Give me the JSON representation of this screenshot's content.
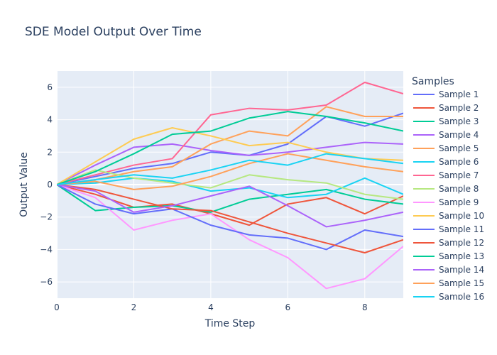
{
  "chart_data": {
    "type": "line",
    "title": "SDE Model Output Over Time",
    "xlabel": "Time Step",
    "ylabel": "Output Value",
    "xlim": [
      0,
      9
    ],
    "ylim": [
      -7,
      7
    ],
    "xticks": [
      0,
      2,
      4,
      6,
      8
    ],
    "yticks": [
      -6,
      -4,
      -2,
      0,
      2,
      4,
      6
    ],
    "legend_title": "Samples",
    "legend_position": "right",
    "grid": true,
    "x": [
      0,
      1,
      2,
      3,
      4,
      5,
      6,
      7,
      8,
      9
    ],
    "series": [
      {
        "name": "Sample 1",
        "color": "#636efa",
        "values": [
          0,
          0.5,
          1.0,
          1.3,
          2.0,
          1.8,
          2.5,
          4.2,
          3.6,
          4.4
        ]
      },
      {
        "name": "Sample 2",
        "color": "#ef553b",
        "values": [
          0,
          -0.6,
          -1.4,
          -1.2,
          -1.8,
          -2.5,
          -1.2,
          -0.8,
          -1.8,
          -0.7
        ]
      },
      {
        "name": "Sample 3",
        "color": "#00cc96",
        "values": [
          0,
          -1.6,
          -1.4,
          -1.3,
          -1.7,
          -0.9,
          -0.6,
          -0.3,
          -0.9,
          -1.2
        ]
      },
      {
        "name": "Sample 4",
        "color": "#ab63fa",
        "values": [
          0,
          1.2,
          2.3,
          2.5,
          2.1,
          1.8,
          2.0,
          2.3,
          2.6,
          2.5
        ]
      },
      {
        "name": "Sample 5",
        "color": "#ffa15a",
        "values": [
          0,
          0.3,
          0.8,
          1.1,
          2.5,
          3.3,
          3.0,
          4.8,
          4.2,
          4.2
        ]
      },
      {
        "name": "Sample 6",
        "color": "#19d3f3",
        "values": [
          0,
          0.1,
          0.4,
          0.2,
          -0.4,
          -0.2,
          -0.8,
          -0.6,
          0.4,
          -0.6
        ]
      },
      {
        "name": "Sample 7",
        "color": "#ff6692",
        "values": [
          0,
          0.6,
          1.2,
          1.6,
          4.3,
          4.7,
          4.6,
          4.9,
          6.3,
          5.6
        ]
      },
      {
        "name": "Sample 8",
        "color": "#b6e880",
        "values": [
          0,
          0.9,
          0.4,
          0.1,
          -0.2,
          0.6,
          0.3,
          0.1,
          -0.6,
          -0.9
        ]
      },
      {
        "name": "Sample 9",
        "color": "#ff97ff",
        "values": [
          0,
          -0.8,
          -2.8,
          -2.2,
          -1.8,
          -3.4,
          -4.5,
          -6.4,
          -5.8,
          -3.8
        ]
      },
      {
        "name": "Sample 10",
        "color": "#fecb52",
        "values": [
          0,
          1.4,
          2.8,
          3.5,
          3.0,
          2.4,
          2.6,
          2.0,
          1.6,
          1.5
        ]
      },
      {
        "name": "Sample 11",
        "color": "#636efa",
        "values": [
          0,
          -1.2,
          -1.8,
          -1.5,
          -2.5,
          -3.1,
          -3.3,
          -4.0,
          -2.8,
          -3.2
        ]
      },
      {
        "name": "Sample 12",
        "color": "#ef553b",
        "values": [
          0,
          -0.3,
          -0.9,
          -1.5,
          -1.6,
          -2.3,
          -3.0,
          -3.6,
          -4.2,
          -3.4
        ]
      },
      {
        "name": "Sample 13",
        "color": "#00cc96",
        "values": [
          0,
          0.8,
          1.9,
          3.1,
          3.3,
          4.1,
          4.5,
          4.2,
          3.8,
          3.3
        ]
      },
      {
        "name": "Sample 14",
        "color": "#ab63fa",
        "values": [
          0,
          -0.4,
          -1.7,
          -1.3,
          -0.7,
          -0.1,
          -1.3,
          -2.6,
          -2.2,
          -1.7
        ]
      },
      {
        "name": "Sample 15",
        "color": "#ffa15a",
        "values": [
          0,
          0.2,
          -0.3,
          -0.1,
          0.5,
          1.3,
          1.9,
          1.5,
          1.1,
          0.8
        ]
      },
      {
        "name": "Sample 16",
        "color": "#19d3f3",
        "values": [
          0,
          0.3,
          0.6,
          0.4,
          0.9,
          1.5,
          1.2,
          1.9,
          1.6,
          1.3
        ]
      }
    ]
  }
}
